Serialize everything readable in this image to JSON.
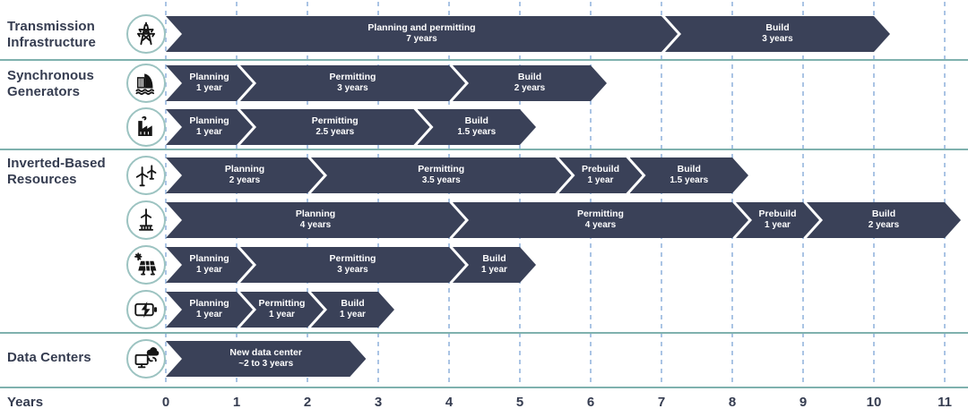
{
  "chart_data": {
    "type": "bar",
    "subtype": "gantt-timeline",
    "axis": {
      "label": "Years",
      "ticks": [
        0,
        1,
        2,
        3,
        4,
        5,
        6,
        7,
        8,
        9,
        10,
        11
      ],
      "min": 0,
      "max": 11,
      "grid": "dashed-vertical"
    },
    "sections": [
      {
        "label": "Transmission Infrastructure",
        "rows": [
          {
            "icon": "transmission-tower-icon",
            "segments": [
              {
                "label": "Planning and permitting",
                "duration": "7 years",
                "start": 0,
                "end": 7
              },
              {
                "label": "Build",
                "duration": "3 years",
                "start": 7,
                "end": 10
              }
            ]
          }
        ]
      },
      {
        "label": "Synchronous Generators",
        "rows": [
          {
            "icon": "hydroelectric-dam-icon",
            "segments": [
              {
                "label": "Planning",
                "duration": "1 year",
                "start": 0,
                "end": 1
              },
              {
                "label": "Permitting",
                "duration": "3 years",
                "start": 1,
                "end": 4
              },
              {
                "label": "Build",
                "duration": "2 years",
                "start": 4,
                "end": 6
              }
            ]
          },
          {
            "icon": "factory-icon",
            "segments": [
              {
                "label": "Planning",
                "duration": "1 year",
                "start": 0,
                "end": 1
              },
              {
                "label": "Permitting",
                "duration": "2.5 years",
                "start": 1,
                "end": 3.5
              },
              {
                "label": "Build",
                "duration": "1.5 years",
                "start": 3.5,
                "end": 5
              }
            ]
          }
        ]
      },
      {
        "label": "Inverted-Based Resources",
        "rows": [
          {
            "icon": "onshore-wind-icon",
            "segments": [
              {
                "label": "Planning",
                "duration": "2 years",
                "start": 0,
                "end": 2
              },
              {
                "label": "Permitting",
                "duration": "3.5 years",
                "start": 2,
                "end": 5.5
              },
              {
                "label": "Prebuild",
                "duration": "1 year",
                "start": 5.5,
                "end": 6.5
              },
              {
                "label": "Build",
                "duration": "1.5 years",
                "start": 6.5,
                "end": 8
              }
            ]
          },
          {
            "icon": "offshore-wind-icon",
            "segments": [
              {
                "label": "Planning",
                "duration": "4 years",
                "start": 0,
                "end": 4
              },
              {
                "label": "Permitting",
                "duration": "4 years",
                "start": 4,
                "end": 8
              },
              {
                "label": "Prebuild",
                "duration": "1 year",
                "start": 8,
                "end": 9
              },
              {
                "label": "Build",
                "duration": "2 years",
                "start": 9,
                "end": 11
              }
            ]
          },
          {
            "icon": "solar-panel-icon",
            "segments": [
              {
                "label": "Planning",
                "duration": "1 year",
                "start": 0,
                "end": 1
              },
              {
                "label": "Permitting",
                "duration": "3 years",
                "start": 1,
                "end": 4
              },
              {
                "label": "Build",
                "duration": "1 year",
                "start": 4,
                "end": 5
              }
            ]
          },
          {
            "icon": "battery-storage-icon",
            "segments": [
              {
                "label": "Planning",
                "duration": "1 year",
                "start": 0,
                "end": 1
              },
              {
                "label": "Permitting",
                "duration": "1 year",
                "start": 1,
                "end": 2
              },
              {
                "label": "Build",
                "duration": "1 year",
                "start": 2,
                "end": 3
              }
            ]
          }
        ]
      },
      {
        "label": "Data Centers",
        "rows": [
          {
            "icon": "data-center-icon",
            "segments": [
              {
                "label": "New data center",
                "duration": "~2 to 3 years",
                "start": 0,
                "end": 2.6
              }
            ]
          }
        ]
      }
    ],
    "colors": {
      "bar": "#3a4158",
      "bar_text": "#ffffff",
      "separator_line": "#7fb1ae",
      "gridline": "#aac4e4",
      "label_text": "#353c50",
      "icon_ring": "#9cc3c1"
    }
  }
}
